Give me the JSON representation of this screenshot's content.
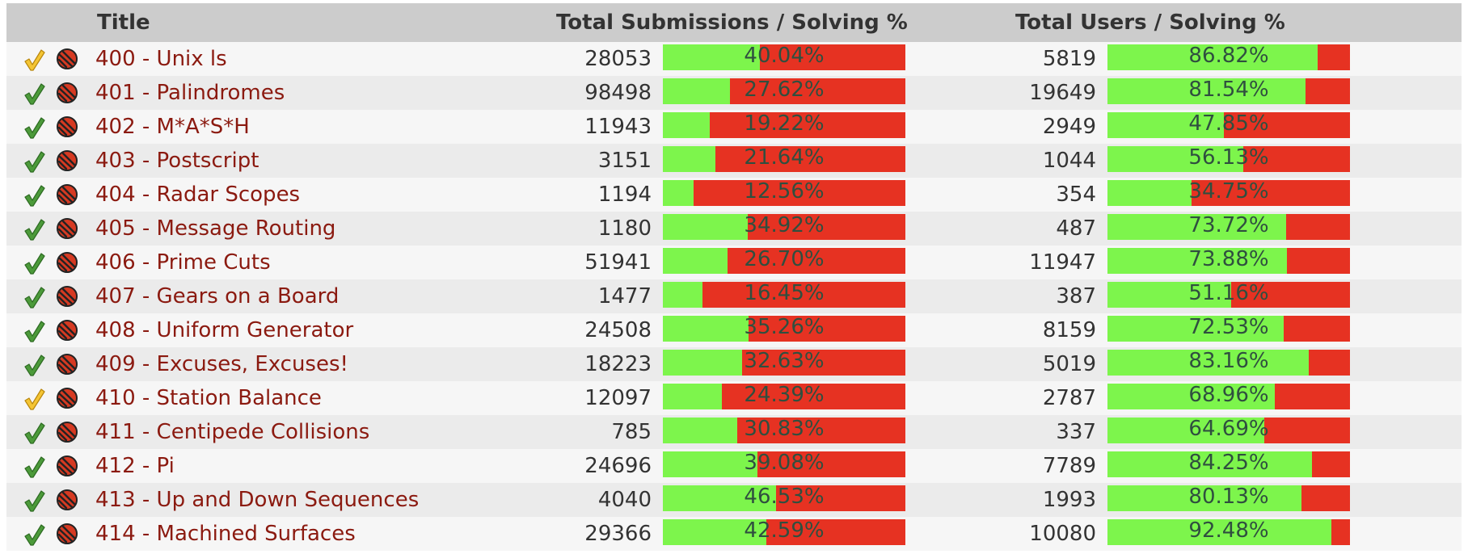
{
  "header": {
    "title": "Title",
    "submissions": "Total Submissions / Solving %",
    "users": "Total Users / Solving %"
  },
  "colors": {
    "solved_fill": "#7df54c",
    "unsolved_fill": "#e63222",
    "title_link": "#8b1a10"
  },
  "icons": {
    "status_solved": "green-check-icon",
    "status_other": "yellow-check-icon",
    "discuss": "discuss-ball-icon"
  },
  "problems": [
    {
      "title": "400 - Unix ls",
      "status": "yellow",
      "submissions": "28053",
      "sub_pct": "40.04%",
      "users": "5819",
      "user_pct": "86.82%"
    },
    {
      "title": "401 - Palindromes",
      "status": "green",
      "submissions": "98498",
      "sub_pct": "27.62%",
      "users": "19649",
      "user_pct": "81.54%"
    },
    {
      "title": "402 - M*A*S*H",
      "status": "green",
      "submissions": "11943",
      "sub_pct": "19.22%",
      "users": "2949",
      "user_pct": "47.85%"
    },
    {
      "title": "403 - Postscript",
      "status": "green",
      "submissions": "3151",
      "sub_pct": "21.64%",
      "users": "1044",
      "user_pct": "56.13%"
    },
    {
      "title": "404 - Radar Scopes",
      "status": "green",
      "submissions": "1194",
      "sub_pct": "12.56%",
      "users": "354",
      "user_pct": "34.75%"
    },
    {
      "title": "405 - Message Routing",
      "status": "green",
      "submissions": "1180",
      "sub_pct": "34.92%",
      "users": "487",
      "user_pct": "73.72%"
    },
    {
      "title": "406 - Prime Cuts",
      "status": "green",
      "submissions": "51941",
      "sub_pct": "26.70%",
      "users": "11947",
      "user_pct": "73.88%"
    },
    {
      "title": "407 - Gears on a Board",
      "status": "green",
      "submissions": "1477",
      "sub_pct": "16.45%",
      "users": "387",
      "user_pct": "51.16%"
    },
    {
      "title": "408 - Uniform Generator",
      "status": "green",
      "submissions": "24508",
      "sub_pct": "35.26%",
      "users": "8159",
      "user_pct": "72.53%"
    },
    {
      "title": "409 - Excuses, Excuses!",
      "status": "green",
      "submissions": "18223",
      "sub_pct": "32.63%",
      "users": "5019",
      "user_pct": "83.16%"
    },
    {
      "title": "410 - Station Balance",
      "status": "yellow",
      "submissions": "12097",
      "sub_pct": "24.39%",
      "users": "2787",
      "user_pct": "68.96%"
    },
    {
      "title": "411 - Centipede Collisions",
      "status": "green",
      "submissions": "785",
      "sub_pct": "30.83%",
      "users": "337",
      "user_pct": "64.69%"
    },
    {
      "title": "412 - Pi",
      "status": "green",
      "submissions": "24696",
      "sub_pct": "39.08%",
      "users": "7789",
      "user_pct": "84.25%"
    },
    {
      "title": "413 - Up and Down Sequences",
      "status": "green",
      "submissions": "4040",
      "sub_pct": "46.53%",
      "users": "1993",
      "user_pct": "80.13%"
    },
    {
      "title": "414 - Machined Surfaces",
      "status": "green",
      "submissions": "29366",
      "sub_pct": "42.59%",
      "users": "10080",
      "user_pct": "92.48%"
    }
  ]
}
